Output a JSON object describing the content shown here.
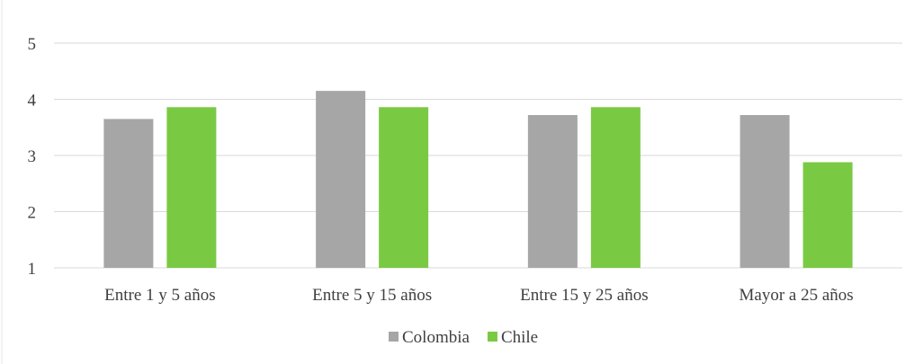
{
  "chart_data": {
    "type": "bar",
    "categories": [
      "Entre 1 y 5 años",
      "Entre 5 y 15 años",
      "Entre 15 y 25 años",
      "Mayor a 25 años"
    ],
    "series": [
      {
        "name": "Colombia",
        "values": [
          3.65,
          4.15,
          3.72,
          3.72
        ]
      },
      {
        "name": "Chile",
        "values": [
          3.86,
          3.86,
          3.86,
          2.88
        ]
      }
    ],
    "yticks": [
      "1",
      "2",
      "3",
      "4",
      "5"
    ],
    "ylim": [
      1,
      5
    ],
    "grid": true,
    "legend_position": "bottom",
    "colors": {
      "Colombia": "#a6a6a6",
      "Chile": "#7ac943",
      "grid": "#d9d9d9",
      "text": "#404040"
    }
  }
}
